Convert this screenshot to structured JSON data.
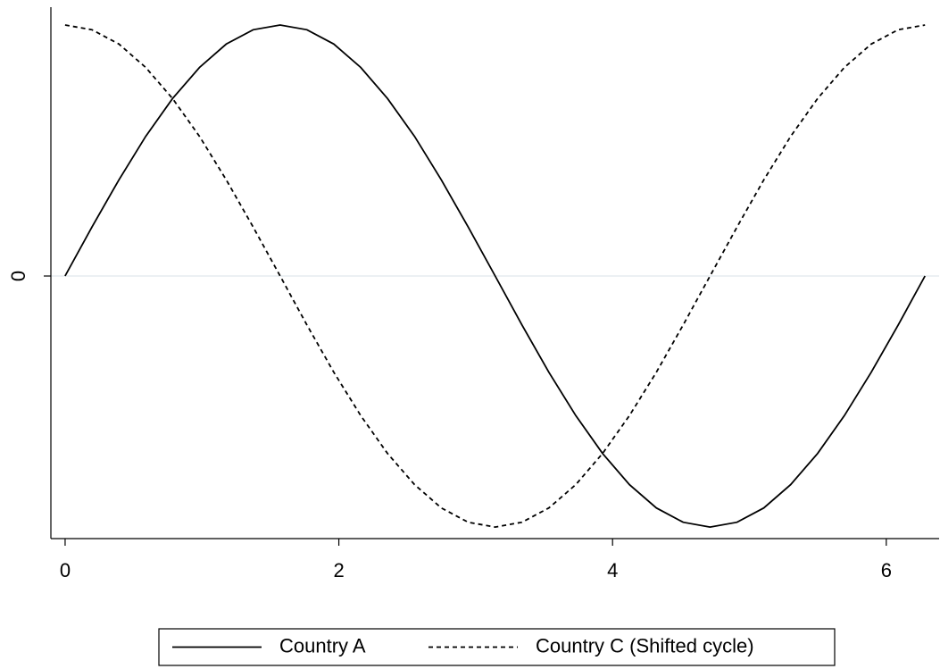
{
  "chart_data": {
    "type": "line",
    "x": [
      0,
      0.196,
      0.393,
      0.589,
      0.785,
      0.982,
      1.178,
      1.374,
      1.571,
      1.767,
      1.963,
      2.16,
      2.356,
      2.553,
      2.749,
      2.945,
      3.142,
      3.338,
      3.534,
      3.731,
      3.927,
      4.123,
      4.32,
      4.516,
      4.712,
      4.909,
      5.105,
      5.301,
      5.498,
      5.694,
      5.89,
      6.087,
      6.283
    ],
    "series": [
      {
        "name": "Country A",
        "color": "#000000",
        "dash": "solid",
        "values": [
          0,
          0.195,
          0.383,
          0.556,
          0.707,
          0.831,
          0.924,
          0.981,
          1,
          0.981,
          0.924,
          0.831,
          0.707,
          0.556,
          0.383,
          0.195,
          0,
          -0.195,
          -0.383,
          -0.556,
          -0.707,
          -0.831,
          -0.924,
          -0.981,
          -1,
          -0.981,
          -0.924,
          -0.831,
          -0.707,
          -0.556,
          -0.383,
          -0.195,
          0
        ]
      },
      {
        "name": "Country C (Shifted cycle)",
        "color": "#000000",
        "dash": "dashed",
        "values": [
          1,
          0.981,
          0.924,
          0.831,
          0.707,
          0.556,
          0.383,
          0.195,
          0,
          -0.195,
          -0.383,
          -0.556,
          -0.707,
          -0.831,
          -0.924,
          -0.981,
          -1,
          -0.981,
          -0.924,
          -0.831,
          -0.707,
          -0.556,
          -0.383,
          -0.195,
          0,
          0.195,
          0.383,
          0.556,
          0.707,
          0.831,
          0.924,
          0.981,
          1
        ]
      }
    ],
    "xlim": [
      -0.104,
      6.386
    ],
    "xticks": [
      0,
      2,
      4,
      6
    ],
    "ylim": [
      -1.046,
      1.071
    ],
    "yticks": [
      0
    ],
    "grid": true,
    "legend_position": "bottom"
  }
}
